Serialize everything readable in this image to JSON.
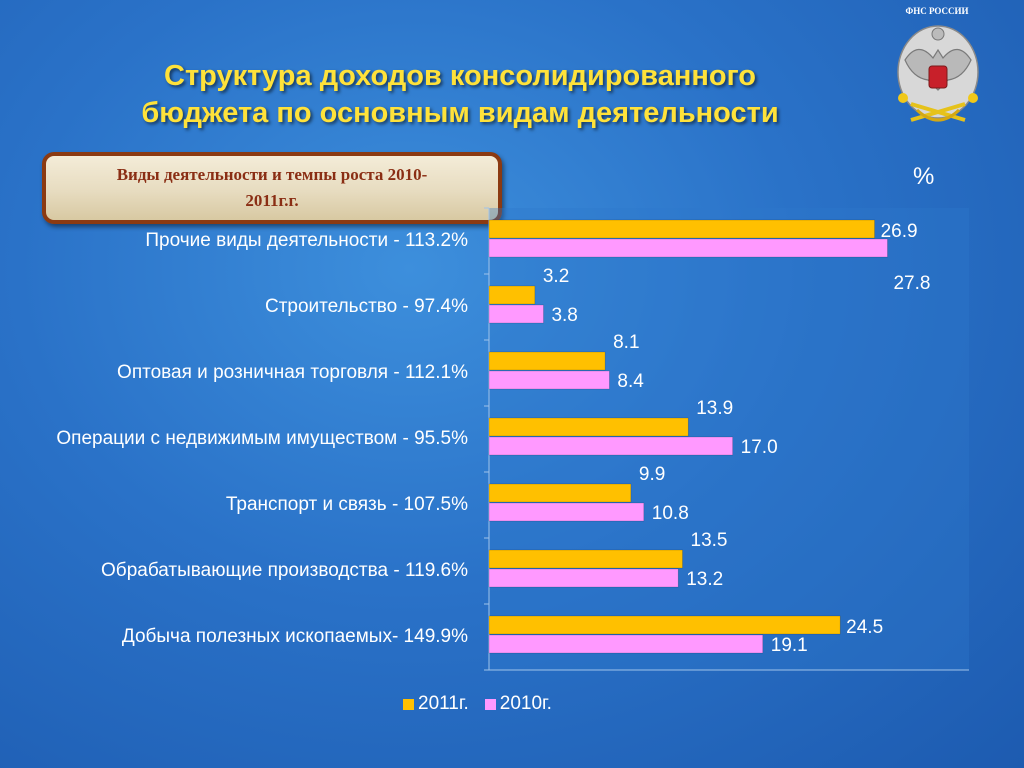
{
  "header": {
    "title_line1": "Структура доходов консолидированного",
    "title_line2": "бюджета по основным видам деятельности",
    "emblem_caption": "ФНС РОССИИ"
  },
  "box": {
    "line1": "Виды деятельности и темпы роста 2010-",
    "line2": "2011г.г."
  },
  "chart_data": {
    "type": "bar",
    "orientation": "horizontal",
    "unit_label": "%",
    "categories": [
      "Прочие виды деятельности - 113.2%",
      "Строительство - 97.4%",
      "Оптовая и розничная торговля - 112.1%",
      "Операции с недвижимым имуществом - 95.5%",
      "Транспорт и связь - 107.5%",
      "Обрабатывающие производства - 119.6%",
      "Добыча полезных ископаемых- 149.9%"
    ],
    "series": [
      {
        "name": "2011г.",
        "color": "#ffc000",
        "values": [
          26.9,
          3.2,
          8.1,
          13.9,
          9.9,
          13.5,
          24.5
        ],
        "labels": [
          "26.9",
          "3.2",
          "8.1",
          "13.9",
          "9.9",
          "13.5",
          "24.5"
        ]
      },
      {
        "name": "2010г.",
        "color": "#ff99ff",
        "values": [
          27.8,
          3.8,
          8.4,
          17.0,
          10.8,
          13.2,
          19.1
        ],
        "labels": [
          "27.8",
          "3.8",
          "8.4",
          "17.0",
          "10.8",
          "13.2",
          "19.1"
        ]
      }
    ],
    "xlim": [
      0,
      30
    ],
    "grid": false,
    "legend_position": "bottom"
  },
  "legend": {
    "items": [
      {
        "label": "2011г.",
        "color": "#ffc000"
      },
      {
        "label": "2010г.",
        "color": "#ff99ff"
      }
    ]
  }
}
